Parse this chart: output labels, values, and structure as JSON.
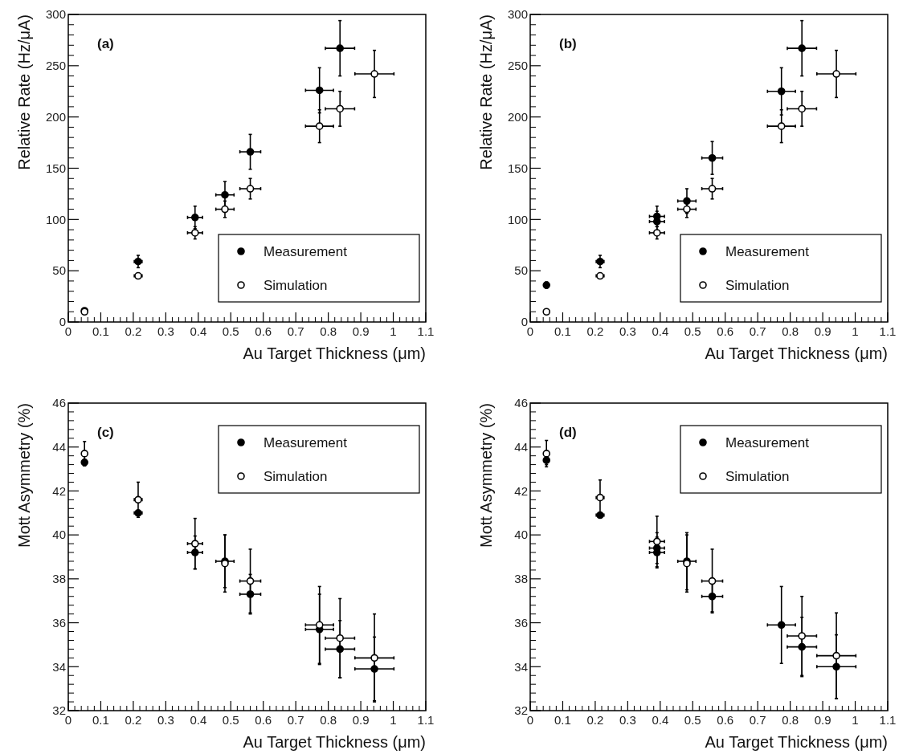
{
  "chart_data": [
    {
      "type": "scatter",
      "xlabel": "Au Target Thickness (μm)",
      "ylabel": "Relative Rate (Hz/μA)",
      "annotations": [
        "(a)"
      ],
      "xlim": [
        0,
        1.1
      ],
      "xticks": [
        0,
        0.1,
        0.2,
        0.3,
        0.4,
        0.5,
        0.6,
        0.7,
        0.8,
        0.9,
        1,
        1.1
      ],
      "ylim": [
        0,
        300
      ],
      "yticks": [
        0,
        50,
        100,
        150,
        200,
        250,
        300
      ],
      "legend": "bottom right",
      "marker": "circle",
      "series": [
        {
          "name": "Measurement",
          "color": "#000000",
          "x": [
            0.05,
            0.215,
            0.39,
            0.482,
            0.56,
            0.773,
            0.836
          ],
          "values": [
            11,
            59,
            102,
            124,
            166,
            226,
            267
          ],
          "errors": [
            2,
            6,
            11,
            13,
            17,
            22,
            27
          ],
          "xerrors": [
            0.005,
            0.012,
            0.023,
            0.028,
            0.032,
            0.043,
            0.045
          ]
        },
        {
          "name": "Simulation",
          "color": "#000000",
          "x": [
            0.05,
            0.215,
            0.39,
            0.482,
            0.56,
            0.773,
            0.836,
            0.942
          ],
          "values": [
            10,
            45,
            87,
            110,
            130,
            191,
            208,
            242
          ],
          "errors": [
            1,
            2,
            6,
            8,
            10,
            16,
            17,
            23
          ],
          "xerrors": [
            0.005,
            0.012,
            0.023,
            0.028,
            0.032,
            0.043,
            0.045,
            0.06
          ]
        }
      ]
    },
    {
      "type": "scatter",
      "xlabel": "Au Target Thickness (μm)",
      "ylabel": "Relative Rate (Hz/μA)",
      "annotations": [
        "(b)"
      ],
      "xlim": [
        0,
        1.1
      ],
      "xticks": [
        0,
        0.1,
        0.2,
        0.3,
        0.4,
        0.5,
        0.6,
        0.7,
        0.8,
        0.9,
        1,
        1.1
      ],
      "ylim": [
        0,
        300
      ],
      "yticks": [
        0,
        50,
        100,
        150,
        200,
        250,
        300
      ],
      "legend": "bottom right",
      "marker": "circle",
      "series": [
        {
          "name": "Measurement",
          "color": "#000000",
          "x": [
            0.05,
            0.215,
            0.39,
            0.39,
            0.482,
            0.56,
            0.773,
            0.836
          ],
          "values": [
            36,
            59,
            103,
            98,
            118,
            160,
            225,
            267
          ],
          "errors": [
            3,
            6,
            10,
            10,
            12,
            16,
            23,
            27
          ],
          "xerrors": [
            0.005,
            0.012,
            0.023,
            0.023,
            0.028,
            0.032,
            0.043,
            0.045
          ]
        },
        {
          "name": "Simulation",
          "color": "#000000",
          "x": [
            0.05,
            0.215,
            0.39,
            0.482,
            0.56,
            0.773,
            0.836,
            0.942
          ],
          "values": [
            10,
            45,
            87,
            110,
            130,
            191,
            208,
            242
          ],
          "errors": [
            1,
            2,
            6,
            8,
            10,
            16,
            17,
            23
          ],
          "xerrors": [
            0.005,
            0.012,
            0.023,
            0.028,
            0.032,
            0.043,
            0.045,
            0.06
          ]
        }
      ]
    },
    {
      "type": "scatter",
      "xlabel": "Au Target Thickness (μm)",
      "ylabel": "Mott Asymmetry (%)",
      "annotations": [
        "(c)"
      ],
      "xlim": [
        0,
        1.1
      ],
      "xticks": [
        0,
        0.1,
        0.2,
        0.3,
        0.4,
        0.5,
        0.6,
        0.7,
        0.8,
        0.9,
        1,
        1.1
      ],
      "ylim": [
        32,
        46
      ],
      "yticks": [
        32,
        34,
        36,
        38,
        40,
        42,
        44,
        46
      ],
      "legend": "top right",
      "marker": "circle",
      "series": [
        {
          "name": "Measurement",
          "color": "#000000",
          "x": [
            0.05,
            0.215,
            0.39,
            0.482,
            0.56,
            0.773,
            0.836,
            0.942
          ],
          "values": [
            43.3,
            41.0,
            39.2,
            38.8,
            37.3,
            35.7,
            34.8,
            33.9
          ],
          "errors": [
            0.15,
            0.1,
            0.75,
            1.2,
            0.9,
            1.6,
            1.3,
            1.45
          ],
          "xerrors": [
            0.005,
            0.012,
            0.023,
            0.028,
            0.032,
            0.043,
            0.045,
            0.06
          ]
        },
        {
          "name": "Simulation",
          "color": "#000000",
          "x": [
            0.05,
            0.215,
            0.39,
            0.482,
            0.56,
            0.773,
            0.836,
            0.942
          ],
          "values": [
            43.7,
            41.6,
            39.6,
            38.7,
            37.9,
            35.9,
            35.3,
            34.4
          ],
          "errors": [
            0.55,
            0.8,
            1.15,
            1.3,
            1.45,
            1.75,
            1.8,
            2.0
          ],
          "xerrors": [
            0.005,
            0.012,
            0.023,
            null,
            0.032,
            0.043,
            0.045,
            0.06
          ]
        }
      ]
    },
    {
      "type": "scatter",
      "xlabel": "Au Target Thickness (μm)",
      "ylabel": "Mott Asymmetry (%)",
      "annotations": [
        "(d)"
      ],
      "xlim": [
        0,
        1.1
      ],
      "xticks": [
        0,
        0.1,
        0.2,
        0.3,
        0.4,
        0.5,
        0.6,
        0.7,
        0.8,
        0.9,
        1,
        1.1
      ],
      "ylim": [
        32,
        46
      ],
      "yticks": [
        32,
        34,
        36,
        38,
        40,
        42,
        44,
        46
      ],
      "legend": "top right",
      "marker": "circle",
      "series": [
        {
          "name": "Measurement",
          "color": "#000000",
          "x": [
            0.05,
            0.215,
            0.39,
            0.39,
            0.482,
            0.56,
            0.773,
            0.836,
            0.942
          ],
          "values": [
            43.4,
            40.9,
            39.4,
            39.2,
            38.8,
            37.2,
            35.9,
            34.9,
            34.0
          ],
          "errors": [
            0.2,
            0.1,
            0.7,
            0.7,
            1.3,
            0.7,
            1.75,
            1.35,
            1.45
          ],
          "xerrors": [
            0.005,
            0.012,
            0.023,
            0.023,
            0.028,
            0.032,
            0.043,
            0.045,
            0.06
          ]
        },
        {
          "name": "Simulation",
          "color": "#000000",
          "x": [
            0.05,
            0.215,
            0.39,
            0.482,
            0.56,
            0.836,
            0.942
          ],
          "values": [
            43.7,
            41.7,
            39.7,
            38.7,
            37.9,
            35.4,
            34.5
          ],
          "errors": [
            0.6,
            0.8,
            1.15,
            1.3,
            1.45,
            1.8,
            1.95
          ],
          "xerrors": [
            0.005,
            0.012,
            0.023,
            null,
            0.032,
            0.045,
            0.06
          ]
        }
      ]
    }
  ]
}
